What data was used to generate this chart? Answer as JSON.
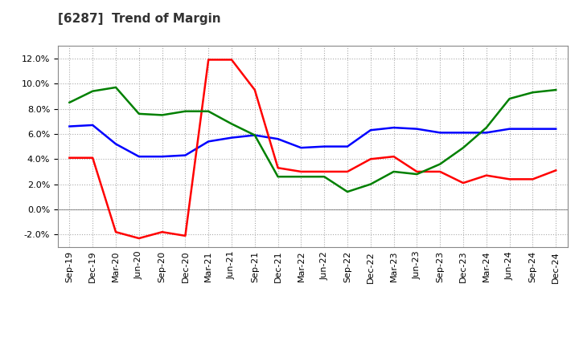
{
  "title": "[6287]  Trend of Margin",
  "x_labels": [
    "Sep-19",
    "Dec-19",
    "Mar-20",
    "Jun-20",
    "Sep-20",
    "Dec-20",
    "Mar-21",
    "Jun-21",
    "Sep-21",
    "Dec-21",
    "Mar-22",
    "Jun-22",
    "Sep-22",
    "Dec-22",
    "Mar-23",
    "Jun-23",
    "Sep-23",
    "Dec-23",
    "Mar-24",
    "Jun-24",
    "Sep-24",
    "Dec-24"
  ],
  "ordinary_income": [
    6.6,
    6.7,
    5.2,
    4.2,
    4.2,
    4.3,
    5.4,
    5.7,
    5.9,
    5.6,
    4.9,
    5.0,
    5.0,
    6.3,
    6.5,
    6.4,
    6.1,
    6.1,
    6.1,
    6.4,
    6.4,
    6.4
  ],
  "net_income": [
    4.1,
    4.1,
    -1.8,
    -2.3,
    -1.8,
    -2.1,
    11.9,
    11.9,
    9.5,
    3.3,
    3.0,
    3.0,
    3.0,
    4.0,
    4.2,
    3.0,
    3.0,
    2.1,
    2.7,
    2.4,
    2.4,
    3.1
  ],
  "operating_cashflow": [
    8.5,
    9.4,
    9.7,
    7.6,
    7.5,
    7.8,
    7.8,
    6.8,
    5.9,
    2.6,
    2.6,
    2.6,
    1.4,
    2.0,
    3.0,
    2.8,
    3.6,
    4.9,
    6.5,
    8.8,
    9.3,
    9.5
  ],
  "ylim": [
    -3.0,
    13.0
  ],
  "yticks": [
    -2.0,
    0.0,
    2.0,
    4.0,
    6.0,
    8.0,
    10.0,
    12.0
  ],
  "line_color_ordinary": "#0000FF",
  "line_color_net": "#FF0000",
  "line_color_cashflow": "#008000",
  "bg_color": "#FFFFFF",
  "plot_bg_color": "#FFFFFF",
  "grid_color": "#AAAAAA",
  "title_fontsize": 11,
  "tick_fontsize": 8,
  "legend_fontsize": 9
}
